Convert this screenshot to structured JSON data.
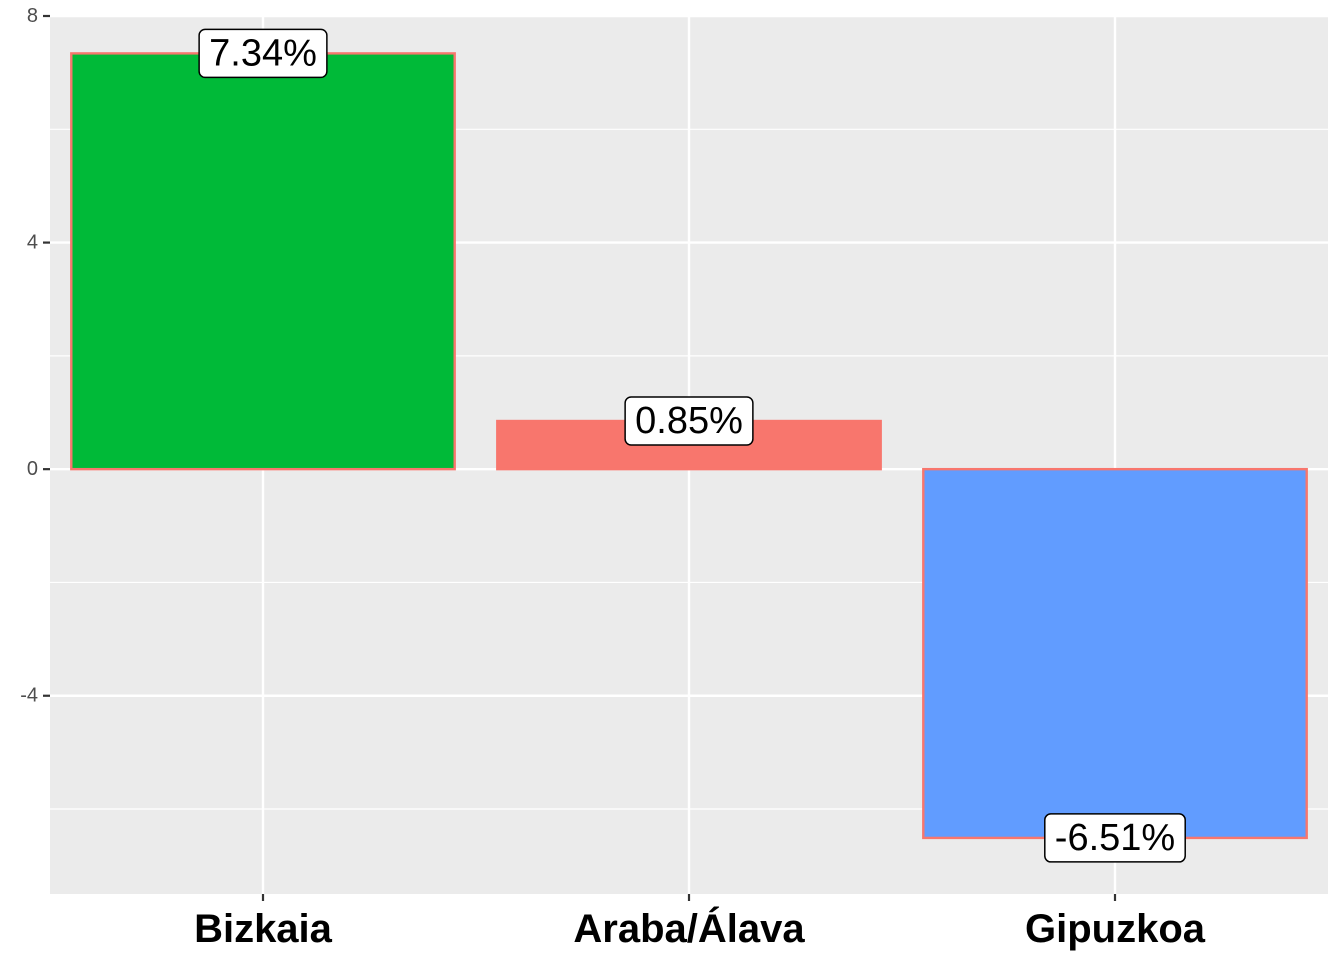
{
  "chart_data": {
    "type": "bar",
    "title": "",
    "xlabel": "",
    "ylabel": "",
    "categories": [
      "Bizkaia",
      "Araba/Álava",
      "Gipuzkoa"
    ],
    "values": [
      7.34,
      0.85,
      -6.51
    ],
    "labels": [
      "7.34%",
      "0.85%",
      "-6.51%"
    ],
    "colors": [
      "#00BA38",
      "#F8766D",
      "#619CFF"
    ],
    "outline_color": "#F8766D",
    "ylim": [
      -7.5,
      8
    ],
    "yticks": [
      8,
      4,
      0,
      -4
    ],
    "ytick_labels": [
      "8",
      "4",
      "0",
      "-4"
    ],
    "grid": true,
    "panel_background": "#EBEBEB",
    "grid_color": "#FFFFFF"
  }
}
